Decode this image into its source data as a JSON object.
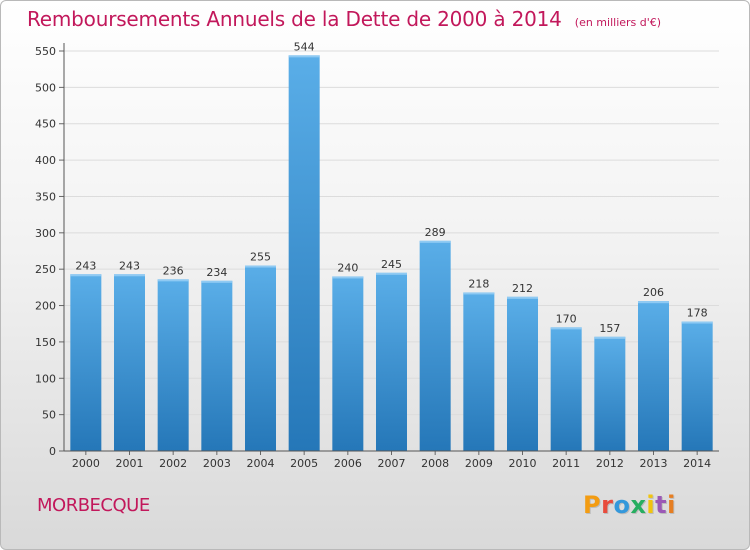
{
  "header": {
    "title": "Remboursements Annuels de la Dette de 2000 à 2014",
    "unit": "(en milliers d'€)"
  },
  "footer": {
    "city": "MORBECQUE",
    "brand": "Proxiti"
  },
  "colors": {
    "bar_light": "#5aaee8",
    "bar_dark": "#2577b8",
    "title": "#c2185b",
    "grid": "#dcdcdc"
  },
  "chart_data": {
    "type": "bar",
    "title": "Remboursements Annuels de la Dette de 2000 à 2014",
    "subtitle": "(en milliers d'€)",
    "xlabel": "",
    "ylabel": "",
    "categories": [
      "2000",
      "2001",
      "2002",
      "2003",
      "2004",
      "2005",
      "2006",
      "2007",
      "2008",
      "2009",
      "2010",
      "2011",
      "2012",
      "2013",
      "2014"
    ],
    "values": [
      243,
      243,
      236,
      234,
      255,
      544,
      240,
      245,
      289,
      218,
      212,
      170,
      157,
      206,
      178
    ],
    "ylim": [
      0,
      550
    ],
    "yticks": [
      0,
      50,
      100,
      150,
      200,
      250,
      300,
      350,
      400,
      450,
      500,
      550
    ],
    "grid": true,
    "data_labels": true
  }
}
